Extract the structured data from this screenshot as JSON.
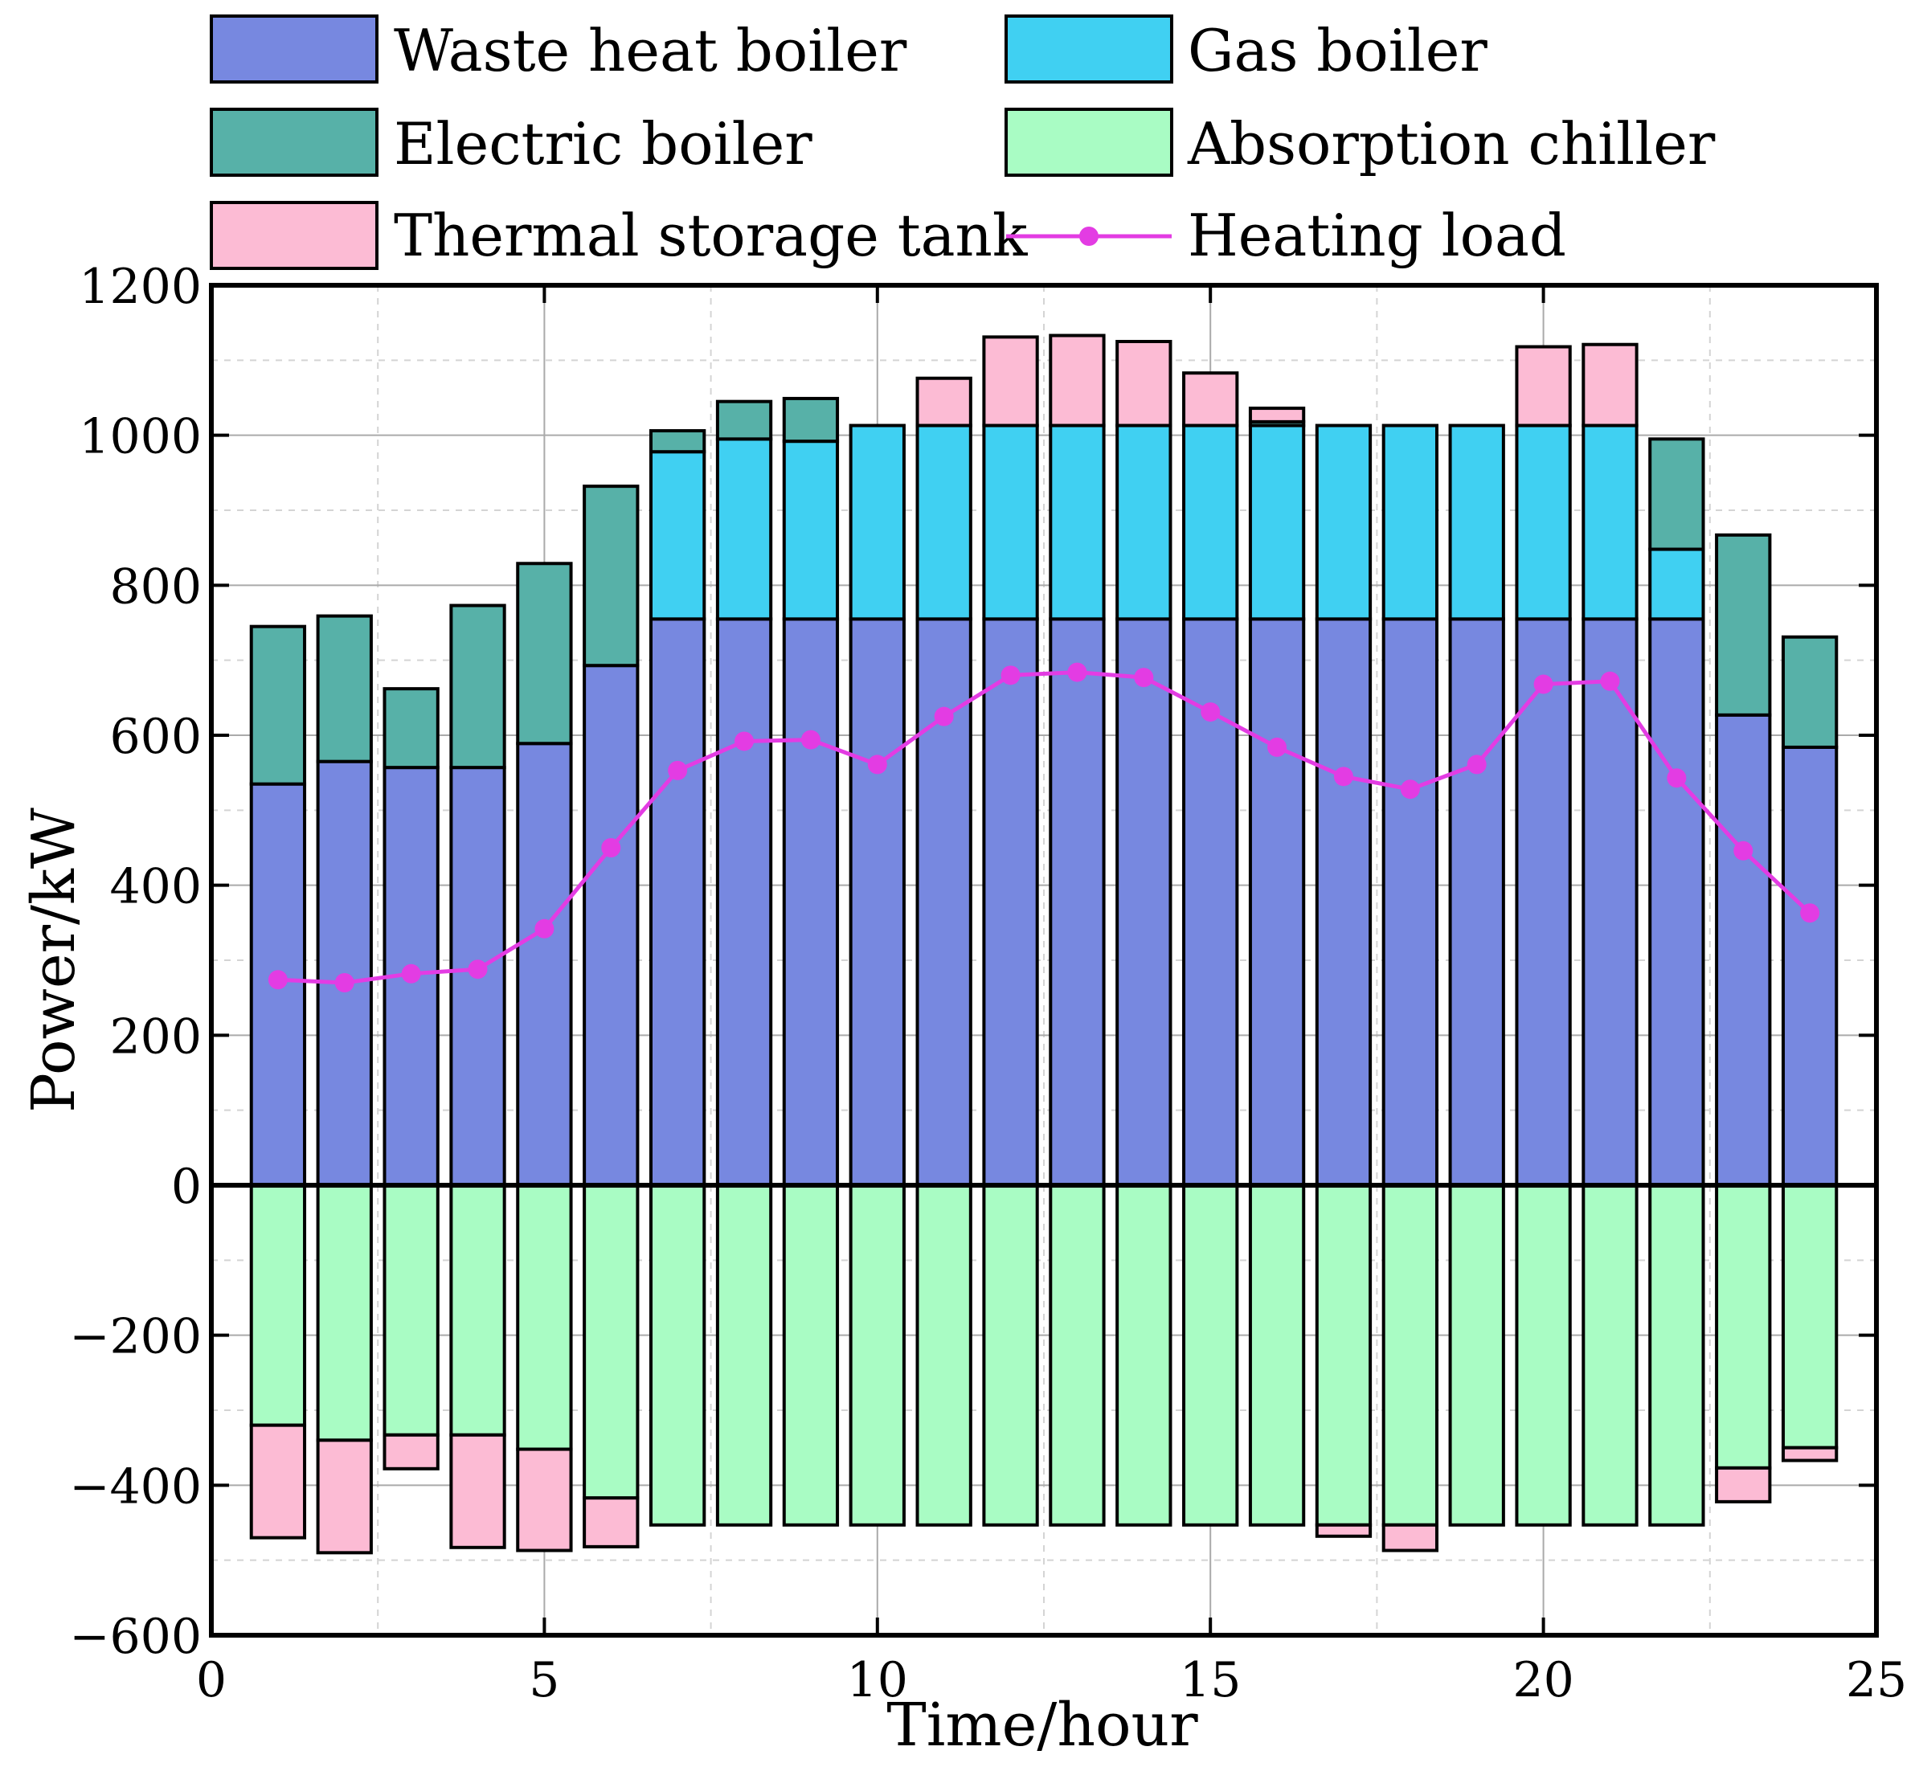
{
  "chart_data": {
    "type": "bar",
    "stacked": true,
    "title": "",
    "xlabel": "Time/hour",
    "ylabel": "Power/kW",
    "xlim": [
      0,
      25
    ],
    "ylim": [
      -600,
      1200
    ],
    "xticks": [
      "0",
      "5",
      "10",
      "15",
      "20",
      "25"
    ],
    "yticks": [
      "−600",
      "−400",
      "−200",
      "0",
      "200",
      "400",
      "600",
      "800",
      "1000",
      "1200"
    ],
    "grid": true,
    "legend_position": "top",
    "x": [
      1,
      2,
      3,
      4,
      5,
      6,
      7,
      8,
      9,
      10,
      11,
      12,
      13,
      14,
      15,
      16,
      17,
      18,
      19,
      20,
      21,
      22,
      23,
      24
    ],
    "series": [
      {
        "name": "Waste heat boiler",
        "color": "#7788e0",
        "values": [
          535,
          565,
          557,
          557,
          589,
          693,
          755,
          755,
          755,
          755,
          755,
          755,
          755,
          755,
          755,
          755,
          755,
          755,
          755,
          755,
          755,
          755,
          627,
          584
        ]
      },
      {
        "name": "Gas boiler",
        "color": "#40d0f2",
        "values": [
          0,
          0,
          0,
          0,
          0,
          0,
          223,
          240,
          237,
          258,
          258,
          258,
          258,
          258,
          258,
          258,
          258,
          258,
          258,
          258,
          258,
          93,
          0,
          0
        ]
      },
      {
        "name": "Electric boiler",
        "color": "#57b1a8",
        "values": [
          210,
          194,
          105,
          216,
          240,
          239,
          28,
          50,
          57,
          0,
          0,
          0,
          0,
          0,
          0,
          5,
          0,
          0,
          0,
          0,
          0,
          147,
          240,
          147
        ]
      },
      {
        "name": "Absorption chiller",
        "color": "#a9fcc4",
        "values": [
          -320,
          -340,
          -333,
          -333,
          -352,
          -417,
          -453,
          -453,
          -453,
          -453,
          -453,
          -453,
          -453,
          -453,
          -453,
          -453,
          -453,
          -453,
          -453,
          -453,
          -453,
          -453,
          -377,
          -350
        ]
      },
      {
        "name": "Thermal storage tank",
        "color": "#fcbbd4",
        "values": [
          -150,
          -150,
          -45,
          -150,
          -135,
          -65,
          0,
          0,
          0,
          0,
          63,
          118,
          120,
          112,
          70,
          18,
          -15,
          -34,
          0,
          105,
          108,
          0,
          -45,
          -17
        ]
      }
    ],
    "line": {
      "name": "Heating load",
      "color": "#e33ce3",
      "values": [
        274,
        270,
        282,
        288,
        342,
        450,
        553,
        592,
        594,
        561,
        625,
        680,
        684,
        677,
        631,
        584,
        545,
        528,
        561,
        668,
        672,
        543,
        446,
        363
      ]
    }
  }
}
